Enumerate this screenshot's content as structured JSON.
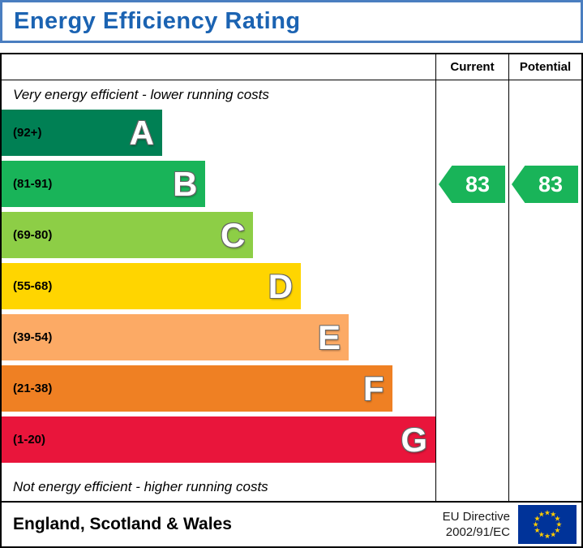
{
  "header": {
    "title": "Energy Efficiency Rating"
  },
  "table": {
    "columns": {
      "current": "Current",
      "potential": "Potential"
    },
    "top_note": "Very energy efficient - lower running costs",
    "bottom_note": "Not energy efficient - higher running costs"
  },
  "bands": [
    {
      "letter": "A",
      "range": "(92+)",
      "color": "#008054",
      "width_pct": 37
    },
    {
      "letter": "B",
      "range": "(81-91)",
      "color": "#19b459",
      "width_pct": 47
    },
    {
      "letter": "C",
      "range": "(69-80)",
      "color": "#8dce46",
      "width_pct": 58
    },
    {
      "letter": "D",
      "range": "(55-68)",
      "color": "#ffd500",
      "width_pct": 69
    },
    {
      "letter": "E",
      "range": "(39-54)",
      "color": "#fcaa65",
      "width_pct": 80
    },
    {
      "letter": "F",
      "range": "(21-38)",
      "color": "#ef8023",
      "width_pct": 90
    },
    {
      "letter": "G",
      "range": "(1-20)",
      "color": "#e9153b",
      "width_pct": 100
    }
  ],
  "ratings": {
    "current": {
      "value": "83",
      "color": "#19b459"
    },
    "potential": {
      "value": "83",
      "color": "#19b459"
    }
  },
  "footer": {
    "region": "England, Scotland & Wales",
    "directive_line1": "EU Directive",
    "directive_line2": "2002/91/EC"
  },
  "chart_data": {
    "type": "bar",
    "title": "Energy Efficiency Rating",
    "categories": [
      "A",
      "B",
      "C",
      "D",
      "E",
      "F",
      "G"
    ],
    "band_ranges": [
      "92+",
      "81-91",
      "69-80",
      "55-68",
      "39-54",
      "21-38",
      "1-20"
    ],
    "band_colors": [
      "#008054",
      "#19b459",
      "#8dce46",
      "#ffd500",
      "#fcaa65",
      "#ef8023",
      "#e9153b"
    ],
    "bar_widths_pct": [
      37,
      47,
      58,
      69,
      80,
      90,
      100
    ],
    "series": [
      {
        "name": "Current",
        "value": 83,
        "band": "B"
      },
      {
        "name": "Potential",
        "value": 83,
        "band": "B"
      }
    ],
    "annotations": [
      "Very energy efficient - lower running costs",
      "Not energy efficient - higher running costs"
    ],
    "footer_region": "England, Scotland & Wales",
    "footer_directive": "EU Directive 2002/91/EC",
    "legend_position": "none",
    "grid": false
  }
}
